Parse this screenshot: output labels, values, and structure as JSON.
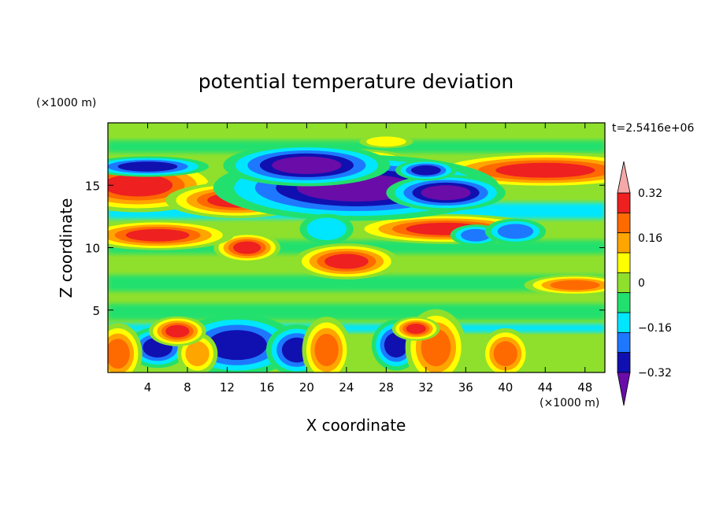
{
  "chart_data": {
    "type": "heatmap",
    "title": "potential temperature deviation",
    "xlabel": "X coordinate",
    "ylabel": "Z coordinate",
    "x_unit": "(×1000 m)",
    "y_unit": "(×1000 m)",
    "time_label": "t=2.5416e+06",
    "xlim": [
      0,
      50
    ],
    "ylim": [
      0,
      20
    ],
    "x_ticks": [
      4,
      8,
      12,
      16,
      20,
      24,
      28,
      32,
      36,
      40,
      44,
      48
    ],
    "y_ticks": [
      5,
      10,
      15
    ],
    "colorbar": {
      "levels": [
        -0.4,
        -0.32,
        -0.24,
        -0.16,
        -0.08,
        0,
        0.08,
        0.16,
        0.24,
        0.32,
        0.4
      ],
      "tick_labels": [
        "0.32",
        "0.16",
        "0",
        "−0.16",
        "−0.32"
      ],
      "tick_values": [
        0.32,
        0.16,
        0,
        -0.16,
        -0.32
      ],
      "colors_high_to_low": [
        "#f5a8a8",
        "#ee2020",
        "#ff6a00",
        "#ffa500",
        "#ffff00",
        "#8ee02c",
        "#22e06e",
        "#00e6ff",
        "#1e78ff",
        "#1010b0",
        "#6a0ca8"
      ]
    },
    "features": [
      {
        "x": 3,
        "z": 15.0,
        "rx": 3.5,
        "rz": 0.9,
        "value": 0.4
      },
      {
        "x": 18,
        "z": 14.7,
        "rx": 3.5,
        "rz": 0.7,
        "value": 0.4
      },
      {
        "x": 13,
        "z": 13.8,
        "rx": 3.0,
        "rz": 0.6,
        "value": 0.4
      },
      {
        "x": 25,
        "z": 16.7,
        "rx": 2.5,
        "rz": 0.5,
        "value": 0.4
      },
      {
        "x": 44,
        "z": 16.2,
        "rx": 5.0,
        "rz": 0.6,
        "value": 0.4
      },
      {
        "x": 34,
        "z": 11.5,
        "rx": 4.0,
        "rz": 0.5,
        "value": 0.4
      },
      {
        "x": 24,
        "z": 8.9,
        "rx": 2.2,
        "rz": 0.6,
        "value": 0.4
      },
      {
        "x": 14,
        "z": 10.0,
        "rx": 1.4,
        "rz": 0.5,
        "value": 0.4
      },
      {
        "x": 5,
        "z": 11.0,
        "rx": 3.2,
        "rz": 0.5,
        "value": 0.4
      },
      {
        "x": 25,
        "z": 14.8,
        "rx": 6.0,
        "rz": 1.1,
        "value": -0.4
      },
      {
        "x": 20,
        "z": 16.6,
        "rx": 3.5,
        "rz": 0.7,
        "value": -0.4
      },
      {
        "x": 34,
        "z": 14.4,
        "rx": 2.5,
        "rz": 0.6,
        "value": -0.4
      },
      {
        "x": 4,
        "z": 16.5,
        "rx": 3.0,
        "rz": 0.4,
        "value": -0.32
      },
      {
        "x": 32,
        "z": 16.2,
        "rx": 1.5,
        "rz": 0.4,
        "value": -0.32
      },
      {
        "x": 13,
        "z": 2.2,
        "rx": 3.0,
        "rz": 1.2,
        "value": -0.32
      },
      {
        "x": 5,
        "z": 2.0,
        "rx": 1.5,
        "rz": 0.8,
        "value": -0.32
      },
      {
        "x": 19,
        "z": 1.8,
        "rx": 1.5,
        "rz": 1.0,
        "value": -0.32
      },
      {
        "x": 29,
        "z": 2.2,
        "rx": 1.2,
        "rz": 1.0,
        "value": -0.32
      },
      {
        "x": 37,
        "z": 11.0,
        "rx": 1.5,
        "rz": 0.5,
        "value": -0.24
      },
      {
        "x": 41,
        "z": 11.3,
        "rx": 1.8,
        "rz": 0.6,
        "value": -0.24
      },
      {
        "x": 22,
        "z": 11.5,
        "rx": 2.0,
        "rz": 0.9,
        "value": -0.16
      },
      {
        "x": 33,
        "z": 2.0,
        "rx": 1.5,
        "rz": 1.5,
        "value": 0.32
      },
      {
        "x": 22,
        "z": 1.8,
        "rx": 1.2,
        "rz": 1.3,
        "value": 0.32
      },
      {
        "x": 9,
        "z": 1.5,
        "rx": 1.2,
        "rz": 1.0,
        "value": 0.24
      },
      {
        "x": 1,
        "z": 1.5,
        "rx": 1.2,
        "rz": 1.2,
        "value": 0.32
      },
      {
        "x": 40,
        "z": 1.5,
        "rx": 1.2,
        "rz": 1.0,
        "value": 0.32
      },
      {
        "x": 47,
        "z": 7.0,
        "rx": 2.5,
        "rz": 0.4,
        "value": 0.32
      },
      {
        "x": 7,
        "z": 3.3,
        "rx": 1.2,
        "rz": 0.5,
        "value": 0.4
      },
      {
        "x": 31,
        "z": 3.5,
        "rx": 1.0,
        "rz": 0.4,
        "value": 0.4
      },
      {
        "x": 28,
        "z": 18.5,
        "rx": 2.0,
        "rz": 0.4,
        "value": 0.16
      }
    ]
  }
}
